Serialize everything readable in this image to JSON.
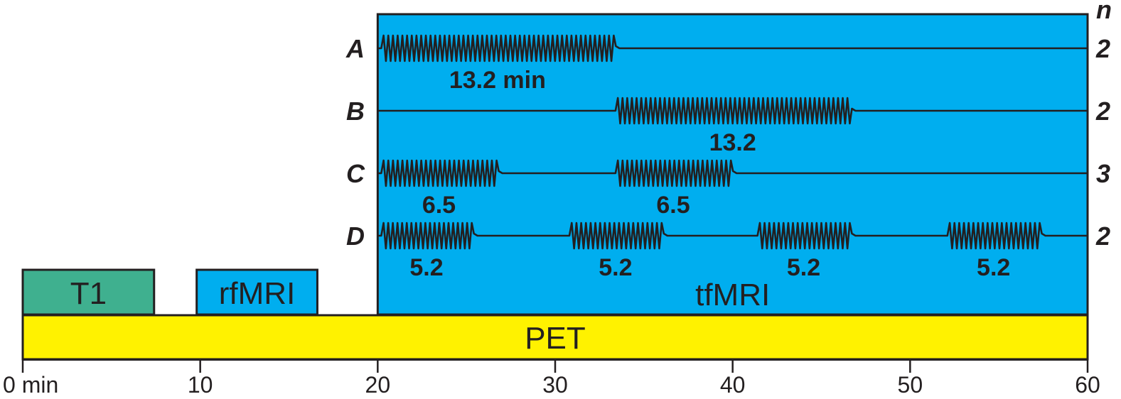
{
  "colors": {
    "t1": "#3fb08f",
    "rfmri": "#00aeef",
    "tfmri": "#00aeef",
    "pet": "#fff200",
    "ink": "#231f20"
  },
  "axis": {
    "min": 0,
    "max": 60,
    "ticks": [
      {
        "value": 0,
        "label": "0 min"
      },
      {
        "value": 10,
        "label": "10"
      },
      {
        "value": 20,
        "label": "20"
      },
      {
        "value": 30,
        "label": "30"
      },
      {
        "value": 40,
        "label": "40"
      },
      {
        "value": 50,
        "label": "50"
      },
      {
        "value": 60,
        "label": "60"
      }
    ]
  },
  "blocks": [
    {
      "id": "t1",
      "label": "T1",
      "start": 0,
      "end": 7.4,
      "color": "#3fb08f"
    },
    {
      "id": "rfmri",
      "label": "rfMRI",
      "start": 9.8,
      "end": 16.6,
      "color": "#00aeef"
    }
  ],
  "tfmri": {
    "label": "tfMRI",
    "start": 20,
    "end": 60
  },
  "pet": {
    "label": "PET",
    "start": 0,
    "end": 60
  },
  "n_header": "n",
  "rows": [
    {
      "id": "A",
      "label": "A",
      "n": "2",
      "segments": [
        {
          "start": 20.2,
          "end": 33.3,
          "label": "13.2 min"
        }
      ]
    },
    {
      "id": "B",
      "label": "B",
      "n": "2",
      "segments": [
        {
          "start": 33.4,
          "end": 46.6,
          "label": "13.2"
        }
      ]
    },
    {
      "id": "C",
      "label": "C",
      "n": "3",
      "segments": [
        {
          "start": 20.2,
          "end": 26.7,
          "label": "6.5"
        },
        {
          "start": 33.4,
          "end": 39.9,
          "label": "6.5"
        }
      ]
    },
    {
      "id": "D",
      "label": "D",
      "n": "2",
      "segments": [
        {
          "start": 20.2,
          "end": 25.3,
          "label": "5.2"
        },
        {
          "start": 30.8,
          "end": 36.0,
          "label": "5.2"
        },
        {
          "start": 41.4,
          "end": 46.6,
          "label": "5.2"
        },
        {
          "start": 52.1,
          "end": 57.3,
          "label": "5.2"
        }
      ]
    }
  ]
}
